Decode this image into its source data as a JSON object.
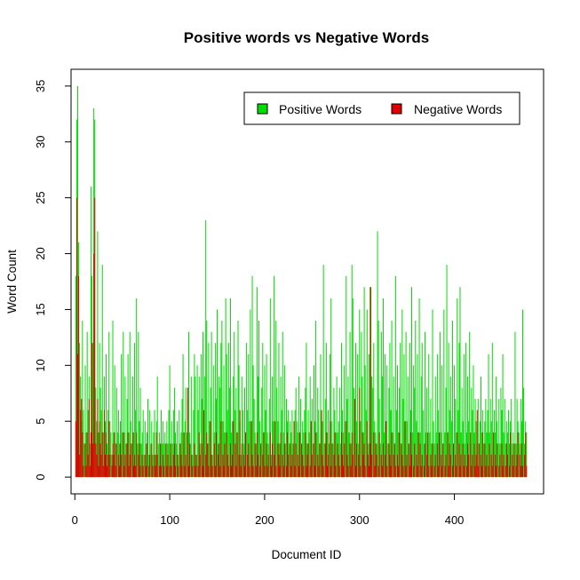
{
  "chart_data": {
    "type": "line",
    "title": "Positive words vs Negative Words",
    "xlabel": "Document ID",
    "ylabel": "Word Count",
    "xlim": [
      -4,
      494
    ],
    "ylim": [
      -1.5,
      36.5
    ],
    "x_ticks": [
      0,
      100,
      200,
      300,
      400
    ],
    "y_ticks": [
      0,
      5,
      10,
      15,
      20,
      25,
      30,
      35
    ],
    "grid": false,
    "legend_position": "top-right",
    "series": [
      {
        "name": "Positive Words",
        "color": "#00DD00",
        "start_x": 1,
        "values": [
          18,
          32,
          35,
          21,
          12,
          9,
          5,
          14,
          6,
          3,
          10,
          4,
          13,
          6,
          9,
          3,
          26,
          18,
          12,
          33,
          32,
          8,
          5,
          22,
          4,
          12,
          8,
          6,
          19,
          4,
          9,
          5,
          11,
          3,
          6,
          13,
          5,
          4,
          2,
          14,
          4,
          10,
          3,
          8,
          4,
          6,
          3,
          5,
          11,
          4,
          13,
          4,
          9,
          3,
          7,
          11,
          4,
          13,
          5,
          3,
          9,
          4,
          12,
          6,
          16,
          3,
          13,
          5,
          8,
          3,
          4,
          6,
          2,
          5,
          3,
          4,
          7,
          2,
          6,
          3,
          5,
          2,
          4,
          6,
          2,
          5,
          9,
          3,
          4,
          2,
          6,
          3,
          5,
          3,
          4,
          2,
          5,
          3,
          6,
          10,
          2,
          5,
          3,
          6,
          8,
          4,
          3,
          5,
          2,
          6,
          3,
          4,
          7,
          11,
          3,
          5,
          8,
          4,
          7,
          13,
          4,
          3,
          9,
          2,
          6,
          11,
          9,
          2,
          10,
          6,
          9,
          3,
          11,
          7,
          13,
          2,
          9,
          23,
          14,
          3,
          12,
          5,
          8,
          13,
          2,
          10,
          4,
          12,
          7,
          15,
          3,
          9,
          8,
          12,
          14,
          5,
          10,
          4,
          16,
          11,
          6,
          12,
          8,
          16,
          4,
          5,
          9,
          13,
          6,
          8,
          3,
          14,
          10,
          5,
          2,
          9,
          6,
          3,
          8,
          4,
          12,
          6,
          11,
          5,
          15,
          3,
          18,
          10,
          7,
          4,
          3,
          17,
          9,
          14,
          5,
          3,
          8,
          12,
          4,
          10,
          6,
          11,
          4,
          3,
          7,
          16,
          2,
          9,
          5,
          18,
          3,
          14,
          8,
          5,
          12,
          3,
          9,
          6,
          13,
          4,
          10,
          3,
          7,
          5,
          6,
          3,
          5,
          4,
          6,
          3,
          5,
          6,
          8,
          5,
          4,
          9,
          4,
          7,
          3,
          5,
          4,
          6,
          8,
          12,
          3,
          6,
          4,
          9,
          5,
          7,
          3,
          10,
          5,
          14,
          4,
          8,
          6,
          3,
          11,
          4,
          5,
          19,
          3,
          7,
          12,
          4,
          6,
          3,
          11,
          16,
          5,
          3,
          8,
          6,
          4,
          9,
          4,
          5,
          8,
          3,
          12,
          6,
          4,
          10,
          5,
          18,
          7,
          9,
          4,
          13,
          3,
          19,
          16,
          8,
          4,
          12,
          5,
          11,
          3,
          15,
          5,
          13,
          9,
          4,
          17,
          10,
          6,
          15,
          3,
          11,
          17,
          4,
          9,
          8,
          12,
          5,
          4,
          3,
          22,
          14,
          7,
          3,
          13,
          9,
          16,
          4,
          11,
          5,
          10,
          3,
          8,
          12,
          6,
          14,
          4,
          9,
          3,
          18,
          6,
          10,
          4,
          8,
          12,
          3,
          15,
          7,
          11,
          4,
          13,
          5,
          9,
          3,
          12,
          6,
          17,
          4,
          10,
          8,
          14,
          5,
          11,
          3,
          16,
          4,
          9,
          12,
          6,
          3,
          13,
          4,
          8,
          3,
          11,
          4,
          7,
          3,
          15,
          5,
          3,
          9,
          4,
          11,
          6,
          3,
          13,
          4,
          10,
          3,
          15,
          4,
          8,
          19,
          3,
          12,
          6,
          9,
          5,
          14,
          3,
          10,
          7,
          4,
          16,
          6,
          12,
          17,
          4,
          8,
          5,
          11,
          3,
          12,
          4,
          9,
          5,
          13,
          3,
          8,
          6,
          10,
          4,
          7,
          5,
          3,
          7,
          3,
          5,
          9,
          4,
          6,
          3,
          5,
          7,
          4,
          6,
          11,
          4,
          7,
          5,
          12,
          3,
          6,
          4,
          9,
          5,
          3,
          7,
          3,
          8,
          6,
          11,
          4,
          7,
          3,
          5,
          4,
          6,
          3,
          5,
          7,
          3,
          4,
          2,
          13,
          3,
          7,
          5,
          4,
          3,
          7,
          5,
          15,
          8,
          3,
          5,
          4
        ]
      },
      {
        "name": "Negative Words",
        "color": "#DD0000",
        "start_x": 1,
        "values": [
          5,
          25,
          11,
          18,
          2,
          6,
          7,
          4,
          1,
          0,
          3,
          1,
          4,
          2,
          7,
          1,
          4,
          12,
          3,
          20,
          25,
          3,
          2,
          7,
          1,
          5,
          3,
          2,
          4,
          1,
          6,
          2,
          4,
          1,
          2,
          5,
          2,
          0,
          1,
          3,
          2,
          4,
          1,
          3,
          0,
          2,
          1,
          3,
          2,
          0,
          4,
          1,
          2,
          0,
          3,
          4,
          1,
          2,
          3,
          0,
          4,
          1,
          2,
          1,
          4,
          0,
          2,
          3,
          1,
          0,
          2,
          1,
          0,
          2,
          1,
          3,
          0,
          1,
          2,
          0,
          3,
          1,
          0,
          2,
          1,
          4,
          2,
          0,
          1,
          3,
          1,
          0,
          2,
          1,
          0,
          3,
          1,
          2,
          0,
          1,
          3,
          1,
          0,
          2,
          3,
          1,
          0,
          2,
          1,
          0,
          3,
          2,
          1,
          0,
          4,
          1,
          2,
          0,
          8,
          1,
          3,
          0,
          2,
          1,
          0,
          3,
          1,
          2,
          0,
          1,
          4,
          2,
          0,
          3,
          1,
          6,
          0,
          2,
          4,
          3,
          1,
          0,
          5,
          2,
          1,
          0,
          3,
          1,
          4,
          0,
          2,
          3,
          1,
          5,
          0,
          2,
          1,
          3,
          0,
          4,
          2,
          1,
          0,
          3,
          1,
          2,
          5,
          0,
          3,
          1,
          4,
          0,
          2,
          6,
          1,
          3,
          0,
          2,
          1,
          4,
          0,
          2,
          3,
          1,
          0,
          5,
          2,
          1,
          0,
          3,
          1,
          4,
          2,
          0,
          1,
          3,
          0,
          2,
          4,
          1,
          0,
          3,
          1,
          2,
          0,
          4,
          1,
          3,
          0,
          2,
          5,
          1,
          0,
          3,
          2,
          1,
          4,
          0,
          2,
          1,
          3,
          0,
          1,
          4,
          2,
          0,
          3,
          1,
          2,
          0,
          5,
          1,
          3,
          0,
          2,
          1,
          4,
          0,
          3,
          2,
          1,
          0,
          4,
          1,
          2,
          3,
          0,
          1,
          5,
          2,
          0,
          3,
          1,
          4,
          0,
          2,
          1,
          3,
          0,
          6,
          2,
          1,
          0,
          3,
          4,
          1,
          2,
          0,
          5,
          1,
          3,
          0,
          2,
          4,
          1,
          0,
          3,
          2,
          1,
          0,
          4,
          2,
          1,
          3,
          0,
          5,
          2,
          1,
          0,
          3,
          1,
          4,
          2,
          0,
          7,
          1,
          3,
          0,
          2,
          8,
          1,
          0,
          4,
          2,
          3,
          1,
          0,
          5,
          2,
          1,
          3,
          17,
          2,
          0,
          4,
          1,
          3,
          2,
          0,
          1,
          4,
          0,
          2,
          1,
          3,
          0,
          2,
          5,
          1,
          0,
          3,
          2,
          1,
          4,
          0,
          2,
          3,
          1,
          0,
          2,
          1,
          4,
          0,
          3,
          2,
          1,
          0,
          5,
          1,
          2,
          0,
          3,
          1,
          4,
          2,
          0,
          1,
          3,
          0,
          2,
          1,
          4,
          0,
          3,
          1,
          2,
          0,
          1,
          3,
          0,
          2,
          4,
          1,
          0,
          2,
          1,
          3,
          0,
          1,
          2,
          0,
          3,
          1,
          4,
          0,
          2,
          1,
          3,
          0,
          1,
          2,
          0,
          4,
          1,
          3,
          2,
          0,
          1,
          3,
          0,
          2,
          1,
          4,
          0,
          3,
          1,
          2,
          0,
          3,
          1,
          2,
          0,
          1,
          3,
          2,
          0,
          4,
          1,
          2,
          0,
          3,
          1,
          2,
          6,
          1,
          3,
          0,
          2,
          1,
          4,
          0,
          3,
          1,
          2,
          0,
          1,
          3,
          0,
          2,
          1,
          4,
          0,
          2,
          1,
          3,
          0,
          1,
          2,
          0,
          3,
          1,
          2,
          0,
          1,
          3,
          2,
          0,
          1,
          4,
          0,
          2,
          1,
          3,
          0,
          1,
          2,
          4,
          0,
          2,
          1,
          3,
          1,
          0,
          2,
          4,
          1
        ]
      }
    ]
  }
}
